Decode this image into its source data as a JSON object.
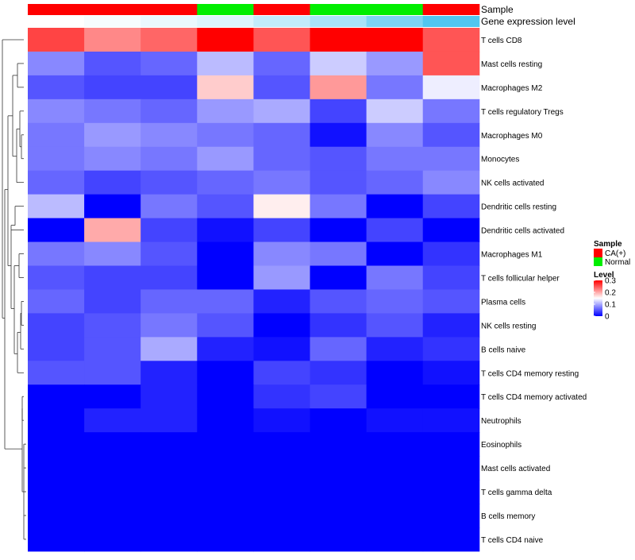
{
  "chart_data": {
    "type": "heatmap",
    "title": "",
    "annotation_rows": [
      "Sample",
      "Gene expression level"
    ],
    "sample_groups": [
      "CA(+)",
      "CA(+)",
      "CA(+)",
      "Normal",
      "CA(+)",
      "Normal",
      "Normal",
      "CA(+)"
    ],
    "gene_expression_level": [
      0.0,
      0.05,
      0.12,
      0.2,
      0.35,
      0.5,
      0.75,
      1.0
    ],
    "rows": [
      "T cells CD8",
      "Mast cells resting",
      "Macrophages M2",
      "T cells regulatory  Tregs",
      "Macrophages M0",
      "Monocytes",
      "NK cells activated",
      "Dendritic cells resting",
      "Dendritic cells activated",
      "Macrophages M1",
      "T cells follicular helper",
      "Plasma cells",
      "NK cells resting",
      "B cells naive",
      "T cells CD4 memory resting",
      "T cells CD4 memory activated",
      "Neutrophils",
      "Eosinophils",
      "Mast cells activated",
      "T cells gamma delta",
      "B cells memory",
      "T cells CD4 naive"
    ],
    "values": [
      [
        0.26,
        0.22,
        0.24,
        0.3,
        0.25,
        0.3,
        0.3,
        0.25
      ],
      [
        0.08,
        0.05,
        0.06,
        0.11,
        0.06,
        0.12,
        0.09,
        0.25
      ],
      [
        0.05,
        0.04,
        0.04,
        0.18,
        0.05,
        0.21,
        0.07,
        0.14
      ],
      [
        0.08,
        0.07,
        0.06,
        0.09,
        0.1,
        0.04,
        0.12,
        0.07
      ],
      [
        0.07,
        0.09,
        0.08,
        0.07,
        0.06,
        0.01,
        0.08,
        0.05
      ],
      [
        0.07,
        0.08,
        0.07,
        0.09,
        0.06,
        0.05,
        0.07,
        0.07
      ],
      [
        0.06,
        0.04,
        0.05,
        0.06,
        0.07,
        0.05,
        0.06,
        0.08
      ],
      [
        0.11,
        0.0,
        0.07,
        0.05,
        0.16,
        0.07,
        0.0,
        0.04
      ],
      [
        0.0,
        0.2,
        0.04,
        0.01,
        0.04,
        0.0,
        0.04,
        0.0
      ],
      [
        0.07,
        0.08,
        0.05,
        0.0,
        0.08,
        0.07,
        0.0,
        0.03
      ],
      [
        0.05,
        0.04,
        0.04,
        0.0,
        0.09,
        0.0,
        0.07,
        0.04
      ],
      [
        0.06,
        0.04,
        0.06,
        0.06,
        0.02,
        0.05,
        0.06,
        0.05
      ],
      [
        0.04,
        0.05,
        0.07,
        0.05,
        0.0,
        0.03,
        0.05,
        0.02
      ],
      [
        0.04,
        0.05,
        0.1,
        0.02,
        0.01,
        0.06,
        0.02,
        0.03
      ],
      [
        0.05,
        0.05,
        0.02,
        0.0,
        0.04,
        0.03,
        0.0,
        0.01
      ],
      [
        0.0,
        0.0,
        0.02,
        0.0,
        0.03,
        0.04,
        0.0,
        0.0
      ],
      [
        0.0,
        0.02,
        0.02,
        0.0,
        0.01,
        0.0,
        0.01,
        0.01
      ],
      [
        0.0,
        0.0,
        0.0,
        0.0,
        0.0,
        0.0,
        0.0,
        0.0
      ],
      [
        0.0,
        0.0,
        0.0,
        0.0,
        0.0,
        0.0,
        0.0,
        0.0
      ],
      [
        0.0,
        0.0,
        0.0,
        0.0,
        0.0,
        0.0,
        0.0,
        0.0
      ],
      [
        0.0,
        0.0,
        0.0,
        0.0,
        0.0,
        0.0,
        0.0,
        0.0
      ],
      [
        0.0,
        0.0,
        0.0,
        0.0,
        0.0,
        0.0,
        0.0,
        0.0
      ]
    ],
    "color_scale": {
      "min": 0,
      "mid": 0.15,
      "max": 0.3,
      "low": "#0000ff",
      "mid_color": "#ffffff",
      "high": "#ff0000"
    },
    "expression_scale": {
      "low": "#ffffff",
      "high": "#52c6f0"
    },
    "legend": {
      "sample_title": "Sample",
      "sample_entries": [
        {
          "label": "CA(+)",
          "color": "#ff0000"
        },
        {
          "label": "Normal",
          "color": "#00ee00"
        }
      ],
      "level_title": "Level",
      "level_ticks": [
        0.3,
        0.2,
        0.1,
        0
      ],
      "level_tick_labels": [
        "0.3",
        "0.2",
        "0.1",
        "0"
      ],
      "placement": "right"
    }
  }
}
